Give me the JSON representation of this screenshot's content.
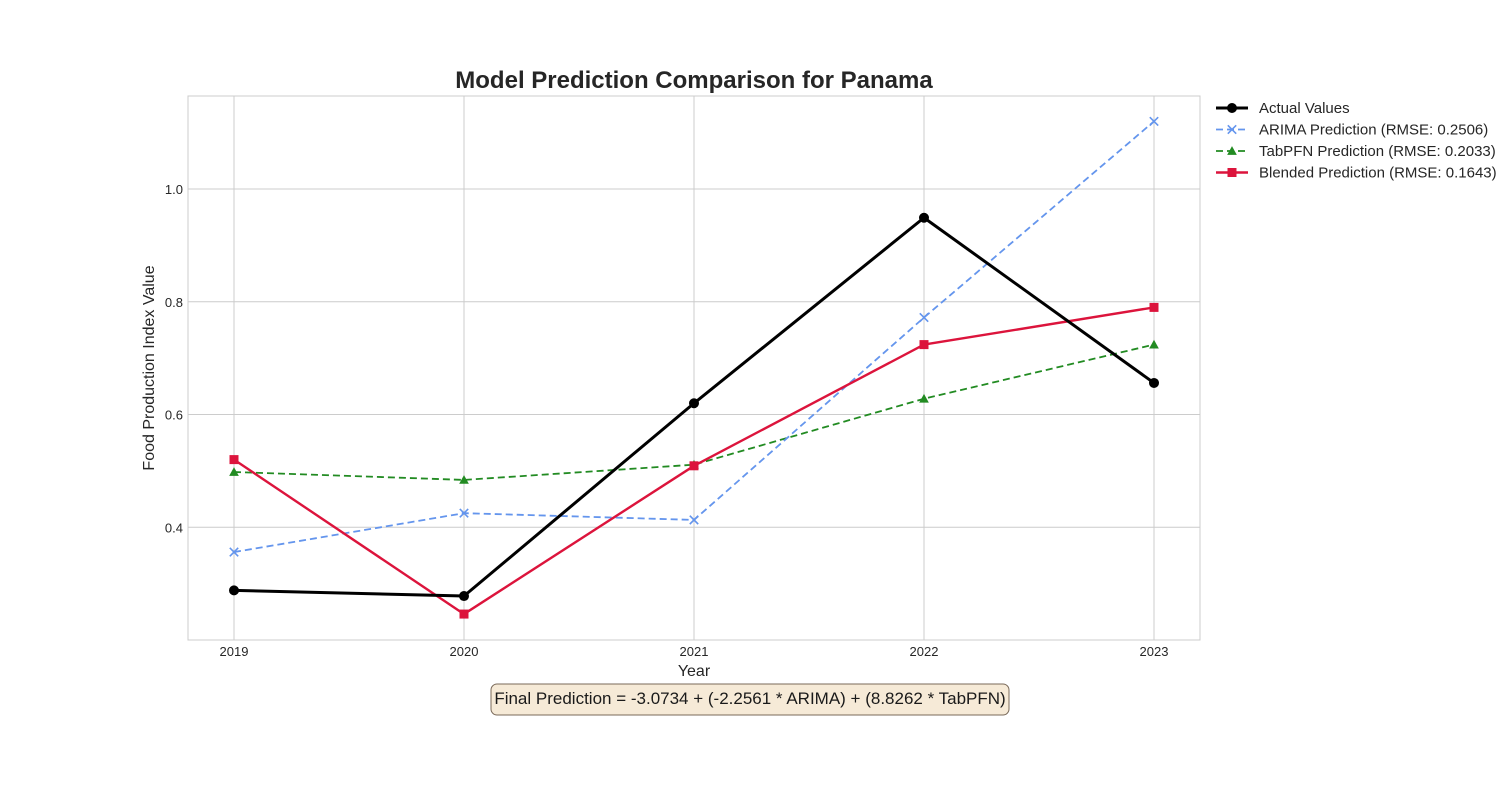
{
  "chart_data": {
    "type": "line",
    "title": "Model Prediction Comparison for Panama",
    "xlabel": "Year",
    "ylabel": "Food Production Index Value",
    "x": [
      2019,
      2020,
      2021,
      2022,
      2023
    ],
    "x_ticks": [
      "2019",
      "2020",
      "2021",
      "2022",
      "2023"
    ],
    "y_ticks": [
      "0.4",
      "0.6",
      "0.8",
      "1.0"
    ],
    "y_tick_values": [
      0.4,
      0.6,
      0.8,
      1.0
    ],
    "xlim": [
      2018.8,
      2023.2
    ],
    "ylim": [
      0.2,
      1.165
    ],
    "grid": true,
    "legend_position": "outside-top-right",
    "series": [
      {
        "name": "Actual Values",
        "color": "#000000",
        "marker": "circle",
        "dashed": false,
        "values": [
          0.288,
          0.278,
          0.62,
          0.949,
          0.656
        ]
      },
      {
        "name": "ARIMA Prediction (RMSE: 0.2506)",
        "color": "#6495ed",
        "marker": "x",
        "dashed": true,
        "values": [
          0.356,
          0.425,
          0.413,
          0.772,
          1.12
        ]
      },
      {
        "name": "TabPFN Prediction (RMSE: 0.2033)",
        "color": "#228b22",
        "marker": "triangle",
        "dashed": true,
        "values": [
          0.498,
          0.484,
          0.511,
          0.628,
          0.724
        ]
      },
      {
        "name": "Blended Prediction (RMSE: 0.1643)",
        "color": "#dc143c",
        "marker": "square",
        "dashed": false,
        "values": [
          0.52,
          0.246,
          0.509,
          0.724,
          0.79
        ]
      }
    ],
    "annotation": "Final Prediction = -3.0734 + (-2.2561 * ARIMA) + (8.8262 * TabPFN)"
  }
}
